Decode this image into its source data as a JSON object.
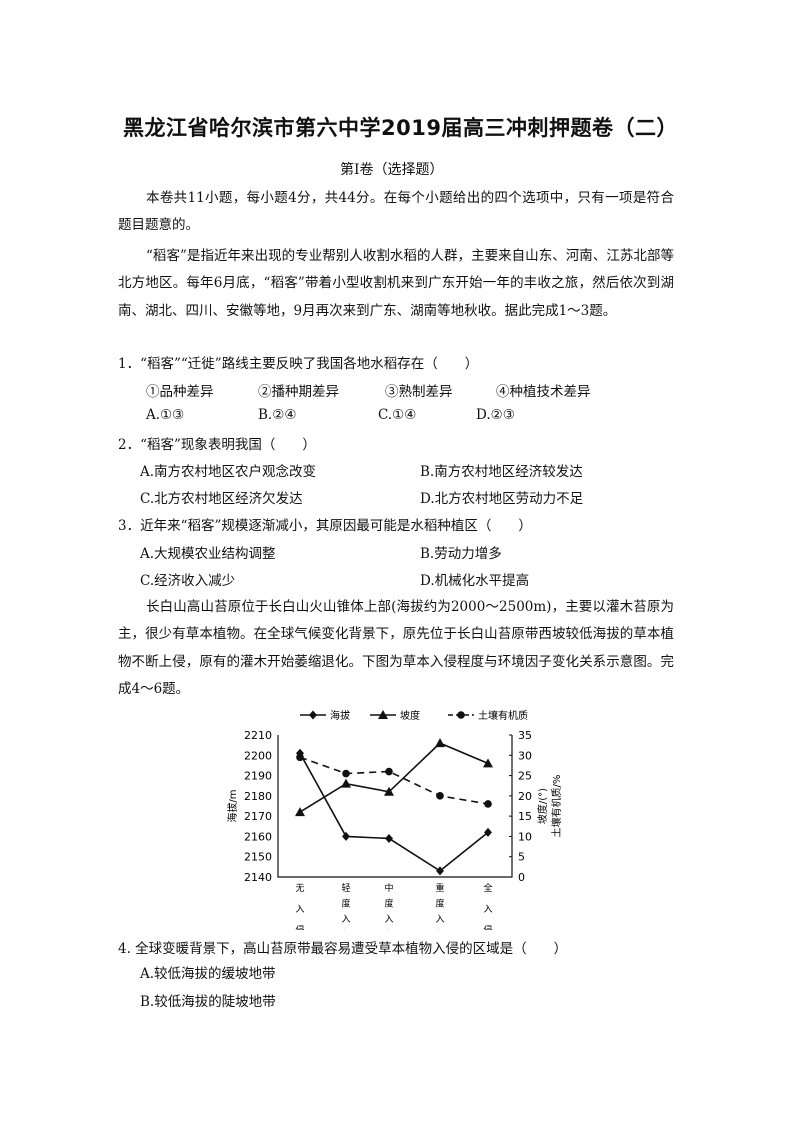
{
  "title": "黑龙江省哈尔滨市第六中学2019届高三冲刺押题卷（二）",
  "section": "第Ⅰ卷（选择题）",
  "intro": "本卷共11小题，每小题4分，共44分。在每个小题给出的四个选项中，只有一项是符合题目题意的。",
  "passage1": "“稻客”是指近年来出现的专业帮别人收割水稻的人群，主要来自山东、河南、江苏北部等北方地区。每年6月底，“稻客”带着小型收割机来到广东开始一年的丰收之旅，然后依次到湖南、湖北、四川、安徽等地，9月再次来到广东、湖南等地秋收。据此完成1～3题。",
  "q1": {
    "stem": "1．“稻客”“迁徙”路线主要反映了我国各地水稻存在（　　）",
    "items": [
      "①品种差异",
      "②播种期差异",
      "③熟制差异",
      "④种植技术差异"
    ],
    "options": [
      "A.①③",
      "B.②④",
      "C.①④",
      "D.②③"
    ]
  },
  "q2": {
    "stem": "2．“稻客”现象表明我国（　　）",
    "options": [
      "A.南方农村地区农户观念改变",
      "B.南方农村地区经济较发达",
      "C.北方农村地区经济欠发达",
      "D.北方农村地区劳动力不足"
    ]
  },
  "q3": {
    "stem": "3．近年来“稻客”规模逐渐减小，其原因最可能是水稻种植区（　　）",
    "options": [
      "A.大规模农业结构调整",
      "B.劳动力增多",
      "C.经济收入减少",
      "D.机械化水平提高"
    ]
  },
  "passage2": "长白山高山苔原位于长白山火山锥体上部(海拔约为2000～2500m)，主要以灌木苔原为主，很少有草本植物。在全球气候变化背景下，原先位于长白山苔原带西坡较低海拔的草本植物不断上侵，原有的灌木开始萎缩退化。下图为草本入侵程度与环境因子变化关系示意图。完成4～6题。",
  "q4": {
    "stem": "4. 全球变暖背景下，高山苔原带最容易遭受草本植物入侵的区域是（　　）",
    "options": [
      "A.较低海拔的缓坡地带",
      "B.较低海拔的陡坡地带"
    ]
  },
  "chart_data": {
    "type": "line",
    "categories": [
      "无入侵",
      "轻度入侵",
      "中度入侵",
      "重度入侵",
      "全入侵"
    ],
    "ylabel_left": "海拔/m",
    "ylabel_right_1": "坡度/(°)",
    "ylabel_right_2": "土壤有机质/%",
    "ylim_left": [
      2140,
      2210
    ],
    "yticks_left": [
      "2140",
      "2150",
      "2160",
      "2170",
      "2180",
      "2190",
      "2200",
      "2210"
    ],
    "ylim_right": [
      0,
      35
    ],
    "yticks_right": [
      "0",
      "5",
      "10",
      "15",
      "20",
      "25",
      "30",
      "35"
    ],
    "legend_position": "top",
    "series": [
      {
        "name": "海拔",
        "axis": "left",
        "marker": "diamond",
        "style": "solid",
        "values": [
          2201,
          2160,
          2159,
          2143,
          2162
        ]
      },
      {
        "name": "坡度",
        "axis": "right",
        "marker": "triangle",
        "style": "solid",
        "values": [
          16,
          23,
          21,
          33,
          28
        ]
      },
      {
        "name": "土壤有机质",
        "axis": "right",
        "marker": "circle",
        "style": "dashed",
        "values": [
          29.5,
          25.5,
          26,
          20,
          18
        ]
      }
    ]
  }
}
